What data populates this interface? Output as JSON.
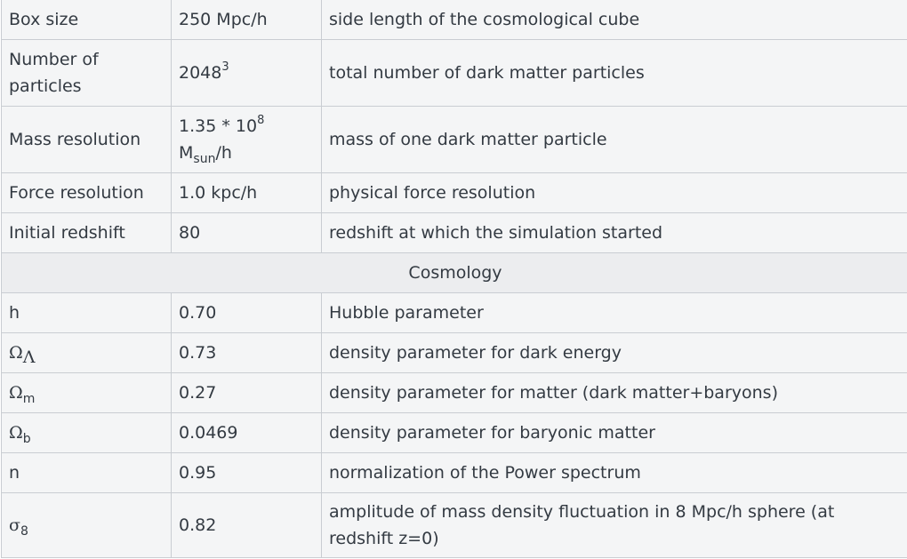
{
  "params": [
    {
      "name": "Box size",
      "value": "250 Mpc/h",
      "desc": "side length of the cosmological cube"
    },
    {
      "name": "Number of particles",
      "value_base": "2048",
      "value_sup": "3",
      "desc": "total number of dark matter particles"
    },
    {
      "name": "Mass resolution",
      "value_base": "1.35 * 10",
      "value_sup": "8",
      "value_unit_base": "M",
      "value_unit_sub": "sun",
      "value_unit_tail": "/h",
      "desc": "mass of one dark matter particle"
    },
    {
      "name": "Force resolution",
      "value": "1.0 kpc/h",
      "desc": "physical force resolution"
    },
    {
      "name": "Initial redshift",
      "value": "80",
      "desc": "redshift at which the simulation started"
    }
  ],
  "section_header": "Cosmology",
  "cosmology": [
    {
      "name": "h",
      "value": "0.70",
      "desc": "Hubble parameter"
    },
    {
      "name_base": "Ω",
      "name_sub": "Λ",
      "value": "0.73",
      "desc": "density parameter for dark energy"
    },
    {
      "name_base": "Ω",
      "name_sub": "m",
      "value": "0.27",
      "desc": "density parameter for matter (dark matter+baryons)"
    },
    {
      "name_base": "Ω",
      "name_sub": "b",
      "value": "0.0469",
      "desc": "density parameter for baryonic matter"
    },
    {
      "name": "n",
      "value": "0.95",
      "desc": "normalization of the Power spectrum"
    },
    {
      "name_base": "σ",
      "name_sub": "8",
      "value": "0.82",
      "desc": "amplitude of mass density fluctuation in 8 Mpc/h sphere (at redshift z=0)"
    }
  ]
}
